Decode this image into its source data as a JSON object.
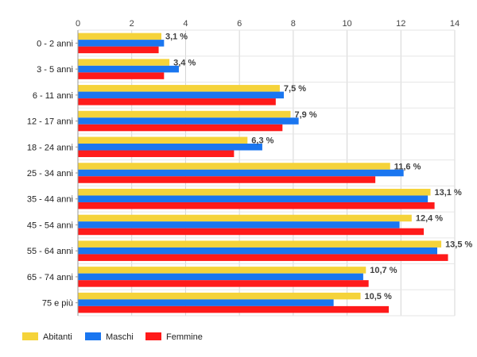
{
  "chart_data": {
    "type": "bar",
    "orientation": "horizontal",
    "categories": [
      "0 - 2 anni",
      "3 - 5 anni",
      "6 - 11 anni",
      "12 - 17 anni",
      "18 - 24 anni",
      "25 - 34 anni",
      "35 - 44 anni",
      "45 - 54 anni",
      "55 - 64 anni",
      "65 - 74 anni",
      "75 e più"
    ],
    "series": [
      {
        "name": "Abitanti",
        "color": "#f5d33a",
        "values": [
          3.1,
          3.4,
          7.5,
          7.9,
          6.3,
          11.6,
          13.1,
          12.4,
          13.5,
          10.7,
          10.5
        ]
      },
      {
        "name": "Maschi",
        "color": "#1a76f0",
        "values": [
          3.2,
          3.75,
          7.65,
          8.2,
          6.85,
          12.1,
          13.0,
          11.95,
          13.35,
          10.6,
          9.5
        ]
      },
      {
        "name": "Femmine",
        "color": "#ff1a1a",
        "values": [
          3.0,
          3.2,
          7.35,
          7.6,
          5.8,
          11.05,
          13.25,
          12.85,
          13.75,
          10.8,
          11.55
        ]
      }
    ],
    "data_labels": [
      "3,1 %",
      "3,4 %",
      "7,5 %",
      "7,9 %",
      "6,3 %",
      "11,6 %",
      "13,1 %",
      "12,4 %",
      "13,5 %",
      "10,7 %",
      "10,5 %"
    ],
    "x_ticks": [
      "0",
      "2",
      "4",
      "6",
      "8",
      "10",
      "12",
      "14"
    ],
    "xlim": [
      0,
      14
    ],
    "grid": true,
    "legend": "bottom-left"
  }
}
